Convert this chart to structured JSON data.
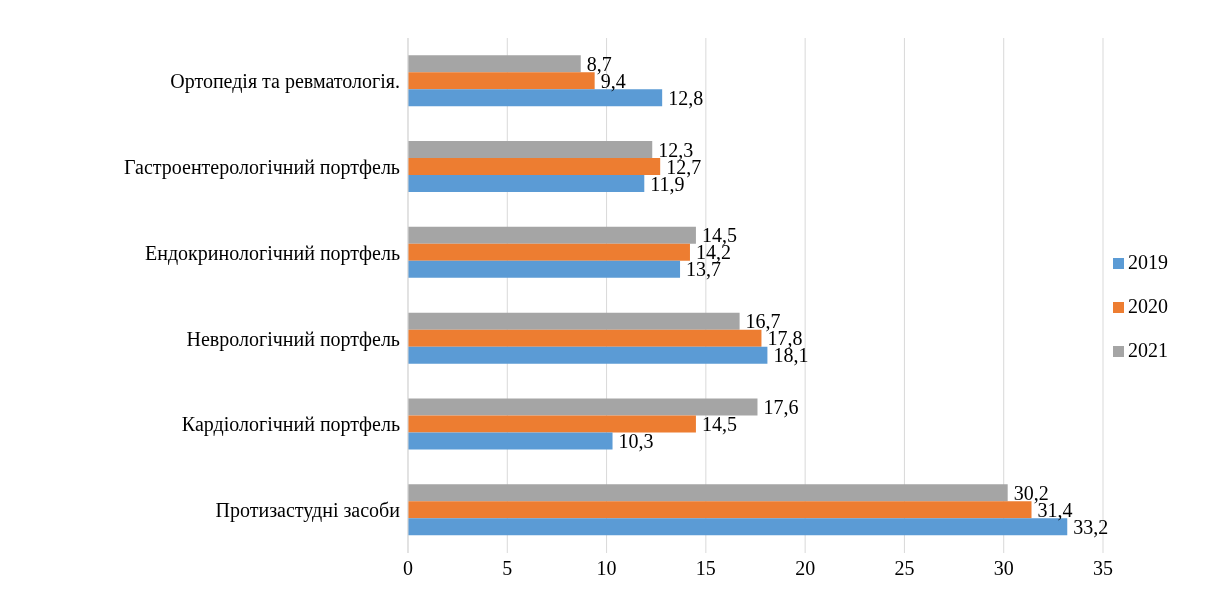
{
  "chart_data": {
    "type": "bar",
    "orientation": "horizontal",
    "categories": [
      "Ортопедія та ревматологія.",
      "Гастроентерологічний портфель",
      "Ендокринологічний портфель",
      "Неврологічний портфель",
      "Кардіологічний портфель",
      "Протизастудні засоби"
    ],
    "series": [
      {
        "name": "2021",
        "color": "#a5a5a5",
        "values": [
          8.7,
          12.3,
          14.5,
          16.7,
          17.6,
          30.2
        ],
        "value_labels": [
          "8,7",
          "12,3",
          "14,5",
          "16,7",
          "17,6",
          "30,2"
        ]
      },
      {
        "name": "2020",
        "color": "#ed7d31",
        "values": [
          9.4,
          12.7,
          14.2,
          17.8,
          14.5,
          31.4
        ],
        "value_labels": [
          "9,4",
          "12,7",
          "14,2",
          "17,8",
          "14,5",
          "31,4"
        ]
      },
      {
        "name": "2019",
        "color": "#5b9bd5",
        "values": [
          12.8,
          11.9,
          13.7,
          18.1,
          10.3,
          33.2
        ],
        "value_labels": [
          "12,8",
          "11,9",
          "13,7",
          "18,1",
          "10,3",
          "33,2"
        ]
      }
    ],
    "xlim": [
      0,
      35
    ],
    "xticks": [
      0,
      5,
      10,
      15,
      20,
      25,
      30,
      35
    ],
    "grid": "x",
    "legend": "right"
  }
}
